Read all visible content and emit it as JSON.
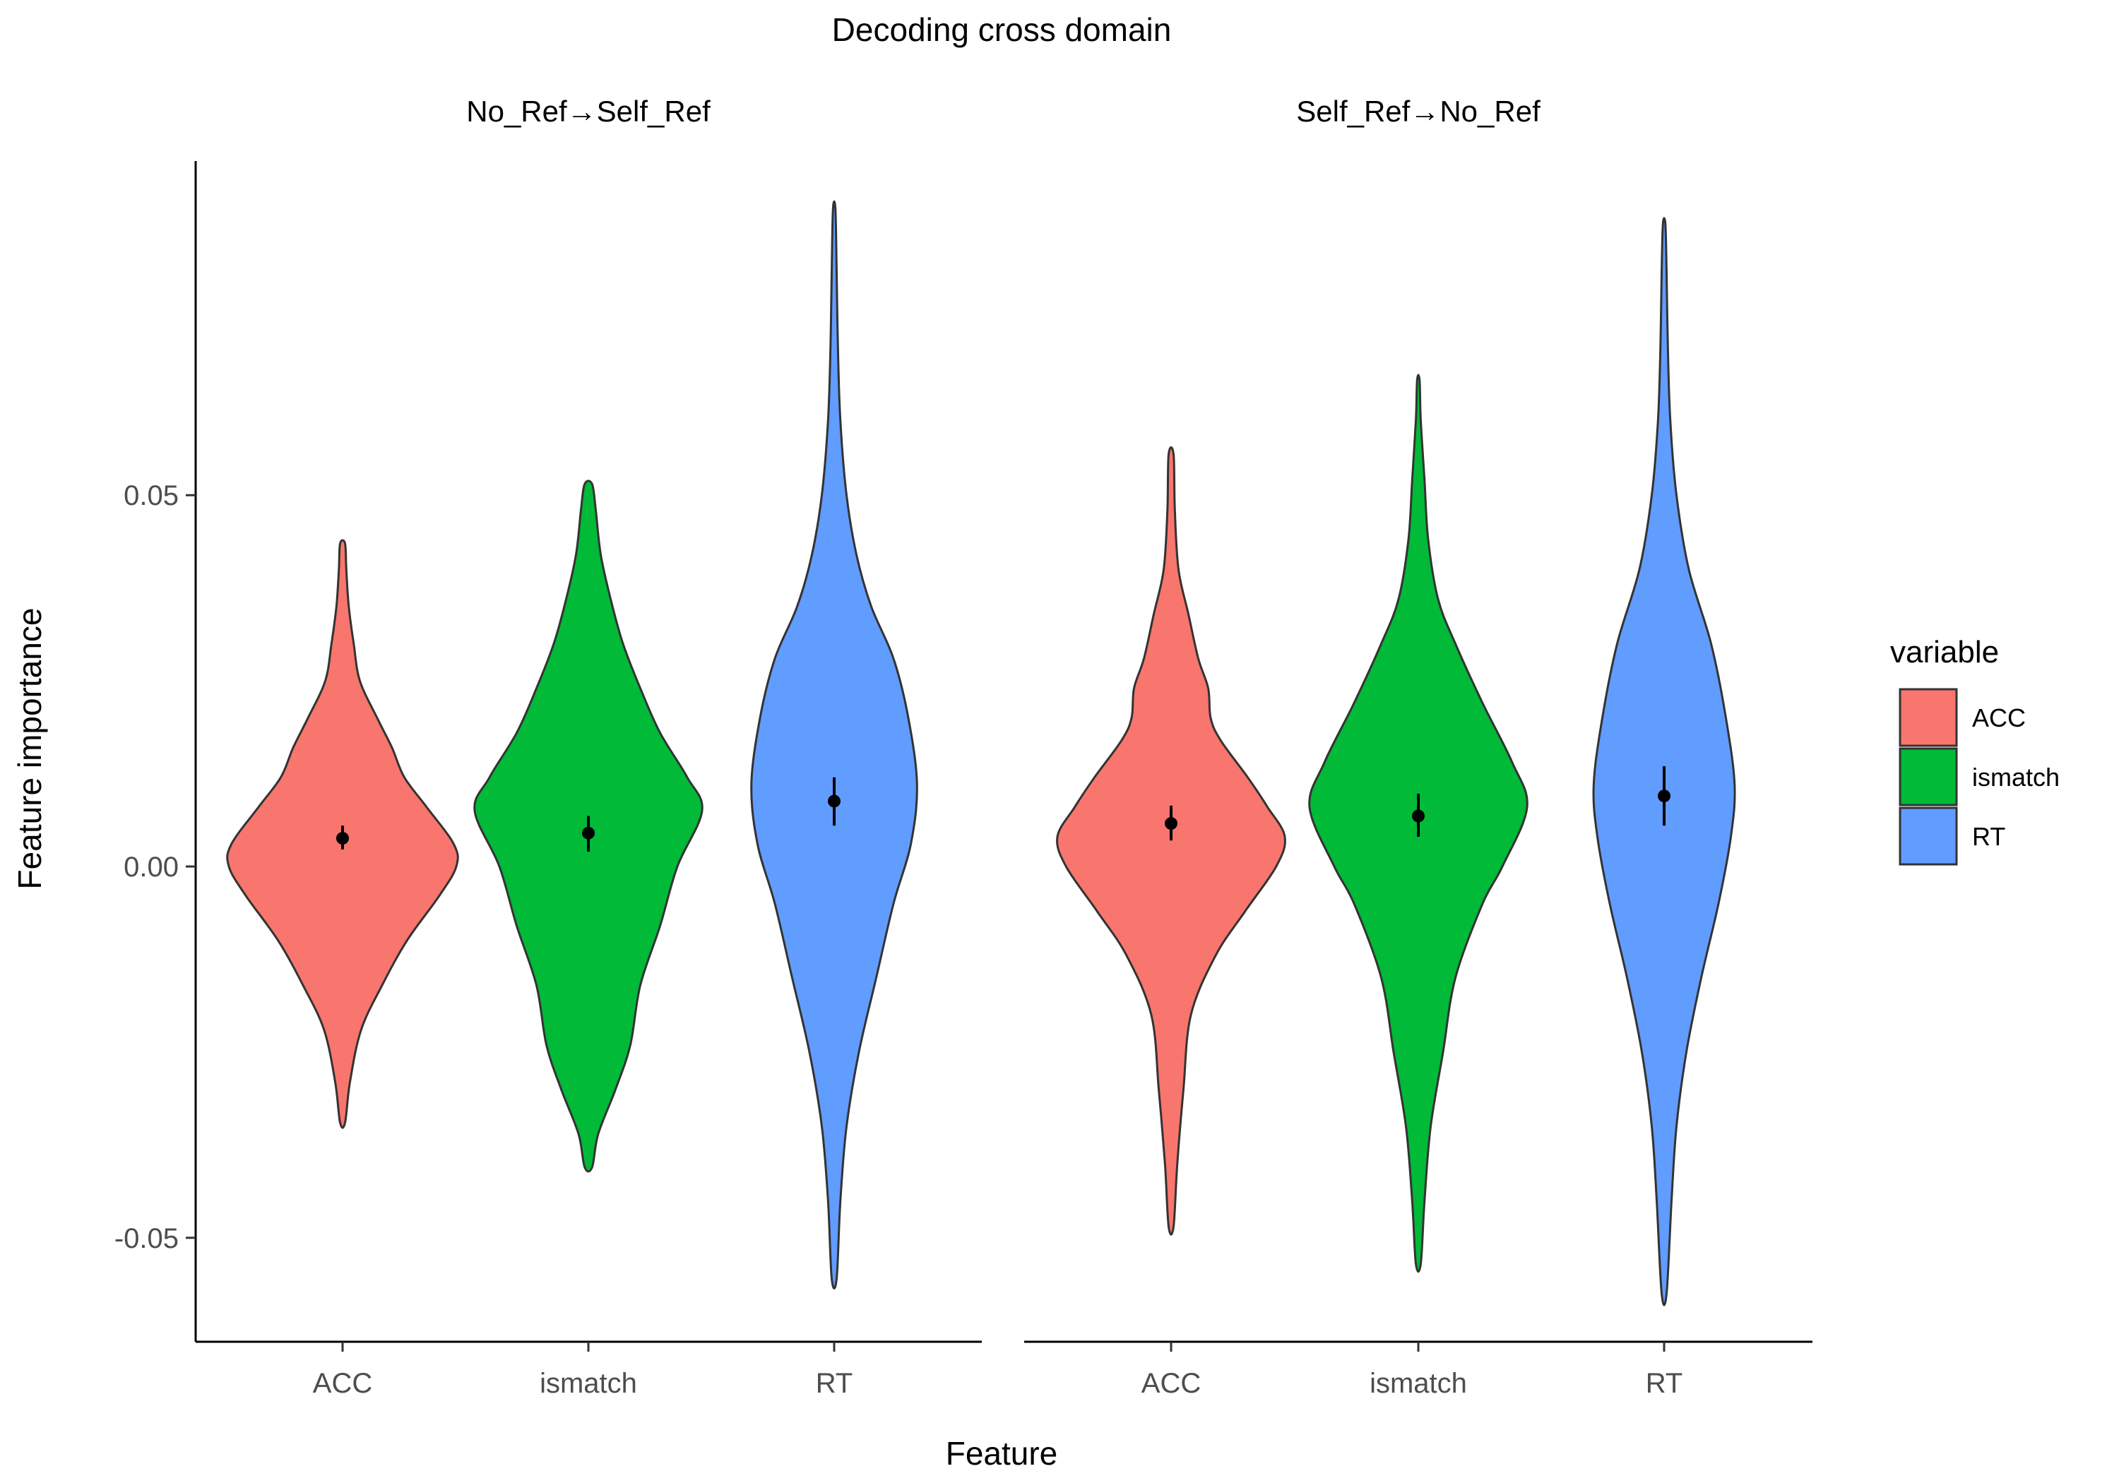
{
  "chart_data": {
    "type": "violin",
    "title": "Decoding cross domain",
    "xlabel": "Feature",
    "ylabel": "Feature importance",
    "ylim": [
      -0.064,
      0.095
    ],
    "yticks": [
      -0.05,
      0.0,
      0.05
    ],
    "ytick_labels": [
      "-0.05",
      "0.00",
      "0.05"
    ],
    "categories": [
      "ACC",
      "ismatch",
      "RT"
    ],
    "legend": {
      "title": "variable",
      "position": "right",
      "entries": [
        {
          "label": "ACC",
          "color": "#F8766D"
        },
        {
          "label": "ismatch",
          "color": "#00BA38"
        },
        {
          "label": "RT",
          "color": "#619CFF"
        }
      ]
    },
    "grid": false,
    "panels": [
      {
        "label": "No_Ref→Self_Ref",
        "series": [
          {
            "category": "ACC",
            "min": -0.0345,
            "max": 0.0435,
            "mean": 0.0038,
            "ci": [
              0.0023,
              0.0055
            ],
            "profile": [
              [
                -0.0345,
                0.02
              ],
              [
                -0.029,
                0.06
              ],
              [
                -0.022,
                0.15
              ],
              [
                -0.016,
                0.32
              ],
              [
                -0.01,
                0.52
              ],
              [
                -0.004,
                0.78
              ],
              [
                0.0,
                0.92
              ],
              [
                0.003,
                0.9
              ],
              [
                0.008,
                0.68
              ],
              [
                0.012,
                0.5
              ],
              [
                0.016,
                0.4
              ],
              [
                0.02,
                0.28
              ],
              [
                0.025,
                0.14
              ],
              [
                0.03,
                0.09
              ],
              [
                0.035,
                0.05
              ],
              [
                0.04,
                0.03
              ],
              [
                0.0435,
                0.02
              ]
            ]
          },
          {
            "category": "ismatch",
            "min": -0.0405,
            "max": 0.0515,
            "mean": 0.0045,
            "ci": [
              0.002,
              0.0068
            ],
            "profile": [
              [
                -0.0405,
                0.03
              ],
              [
                -0.036,
                0.08
              ],
              [
                -0.03,
                0.22
              ],
              [
                -0.024,
                0.34
              ],
              [
                -0.016,
                0.42
              ],
              [
                -0.008,
                0.58
              ],
              [
                0.0,
                0.72
              ],
              [
                0.0075,
                0.92
              ],
              [
                0.012,
                0.8
              ],
              [
                0.018,
                0.58
              ],
              [
                0.024,
                0.42
              ],
              [
                0.03,
                0.28
              ],
              [
                0.036,
                0.18
              ],
              [
                0.042,
                0.1
              ],
              [
                0.048,
                0.06
              ],
              [
                0.0515,
                0.03
              ]
            ]
          },
          {
            "category": "RT",
            "min": -0.0555,
            "max": 0.0885,
            "mean": 0.0088,
            "ci": [
              0.0055,
              0.012
            ],
            "profile": [
              [
                -0.0555,
                0.02
              ],
              [
                -0.045,
                0.05
              ],
              [
                -0.035,
                0.1
              ],
              [
                -0.025,
                0.2
              ],
              [
                -0.015,
                0.34
              ],
              [
                -0.005,
                0.48
              ],
              [
                0.003,
                0.62
              ],
              [
                0.011,
                0.67
              ],
              [
                0.02,
                0.6
              ],
              [
                0.028,
                0.48
              ],
              [
                0.035,
                0.3
              ],
              [
                0.042,
                0.18
              ],
              [
                0.05,
                0.1
              ],
              [
                0.06,
                0.05
              ],
              [
                0.07,
                0.03
              ],
              [
                0.08,
                0.02
              ],
              [
                0.0885,
                0.01
              ]
            ]
          }
        ]
      },
      {
        "label": "Self_Ref→No_Ref",
        "series": [
          {
            "category": "ACC",
            "min": -0.0485,
            "max": 0.0555,
            "mean": 0.0058,
            "ci": [
              0.0035,
              0.0082
            ],
            "profile": [
              [
                -0.0485,
                0.02
              ],
              [
                -0.04,
                0.05
              ],
              [
                -0.03,
                0.1
              ],
              [
                -0.02,
                0.16
              ],
              [
                -0.012,
                0.36
              ],
              [
                -0.006,
                0.6
              ],
              [
                0.0,
                0.85
              ],
              [
                0.004,
                0.92
              ],
              [
                0.008,
                0.78
              ],
              [
                0.012,
                0.62
              ],
              [
                0.017,
                0.4
              ],
              [
                0.02,
                0.32
              ],
              [
                0.024,
                0.3
              ],
              [
                0.028,
                0.22
              ],
              [
                0.034,
                0.14
              ],
              [
                0.04,
                0.06
              ],
              [
                0.048,
                0.03
              ],
              [
                0.0555,
                0.02
              ]
            ]
          },
          {
            "category": "ismatch",
            "min": -0.0535,
            "max": 0.0655,
            "mean": 0.0068,
            "ci": [
              0.004,
              0.0098
            ],
            "profile": [
              [
                -0.0535,
                0.02
              ],
              [
                -0.045,
                0.05
              ],
              [
                -0.035,
                0.1
              ],
              [
                -0.025,
                0.2
              ],
              [
                -0.015,
                0.3
              ],
              [
                -0.005,
                0.52
              ],
              [
                0.0,
                0.68
              ],
              [
                0.008,
                0.88
              ],
              [
                0.014,
                0.76
              ],
              [
                0.022,
                0.52
              ],
              [
                0.03,
                0.3
              ],
              [
                0.036,
                0.16
              ],
              [
                0.044,
                0.08
              ],
              [
                0.052,
                0.05
              ],
              [
                0.06,
                0.02
              ],
              [
                0.0655,
                0.01
              ]
            ]
          },
          {
            "category": "RT",
            "min": -0.0575,
            "max": 0.0865,
            "mean": 0.0095,
            "ci": [
              0.0055,
              0.0135
            ],
            "profile": [
              [
                -0.0575,
                0.02
              ],
              [
                -0.045,
                0.06
              ],
              [
                -0.035,
                0.1
              ],
              [
                -0.025,
                0.18
              ],
              [
                -0.015,
                0.3
              ],
              [
                -0.005,
                0.44
              ],
              [
                0.004,
                0.54
              ],
              [
                0.011,
                0.57
              ],
              [
                0.02,
                0.5
              ],
              [
                0.03,
                0.38
              ],
              [
                0.04,
                0.2
              ],
              [
                0.05,
                0.1
              ],
              [
                0.06,
                0.05
              ],
              [
                0.07,
                0.03
              ],
              [
                0.08,
                0.02
              ],
              [
                0.0865,
                0.01
              ]
            ]
          }
        ]
      }
    ]
  }
}
